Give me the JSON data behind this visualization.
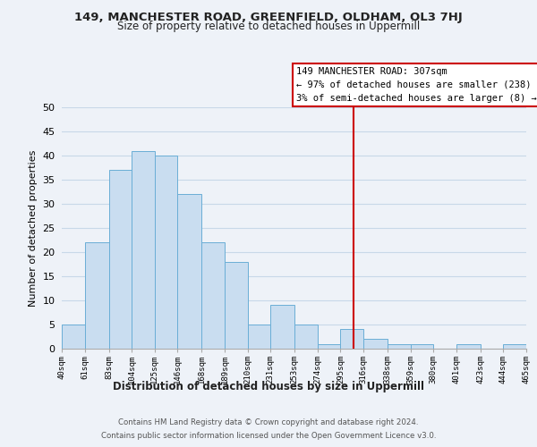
{
  "title1": "149, MANCHESTER ROAD, GREENFIELD, OLDHAM, OL3 7HJ",
  "title2": "Size of property relative to detached houses in Uppermill",
  "xlabel": "Distribution of detached houses by size in Uppermill",
  "ylabel": "Number of detached properties",
  "bin_edges": [
    40,
    61,
    83,
    104,
    125,
    146,
    168,
    189,
    210,
    231,
    253,
    274,
    295,
    316,
    338,
    359,
    380,
    401,
    423,
    444,
    465
  ],
  "bar_heights": [
    5,
    22,
    37,
    41,
    40,
    32,
    22,
    18,
    5,
    9,
    5,
    1,
    4,
    2,
    1,
    1,
    0,
    1,
    0,
    1
  ],
  "bar_color": "#c9ddf0",
  "bar_edge_color": "#6aaed6",
  "vline_x": 307,
  "vline_color": "#cc0000",
  "annotation_line1": "149 MANCHESTER ROAD: 307sqm",
  "annotation_line2": "← 97% of detached houses are smaller (238)",
  "annotation_line3": "3% of semi-detached houses are larger (8) →",
  "ylim": [
    0,
    50
  ],
  "yticks": [
    0,
    5,
    10,
    15,
    20,
    25,
    30,
    35,
    40,
    45,
    50
  ],
  "tick_labels": [
    "40sqm",
    "61sqm",
    "83sqm",
    "104sqm",
    "125sqm",
    "146sqm",
    "168sqm",
    "189sqm",
    "210sqm",
    "231sqm",
    "253sqm",
    "274sqm",
    "295sqm",
    "316sqm",
    "338sqm",
    "359sqm",
    "380sqm",
    "401sqm",
    "423sqm",
    "444sqm",
    "465sqm"
  ],
  "footer1": "Contains HM Land Registry data © Crown copyright and database right 2024.",
  "footer2": "Contains public sector information licensed under the Open Government Licence v3.0.",
  "bg_color": "#eef2f8",
  "plot_bg_color": "#eef2f8",
  "grid_color": "#c8d8e8"
}
